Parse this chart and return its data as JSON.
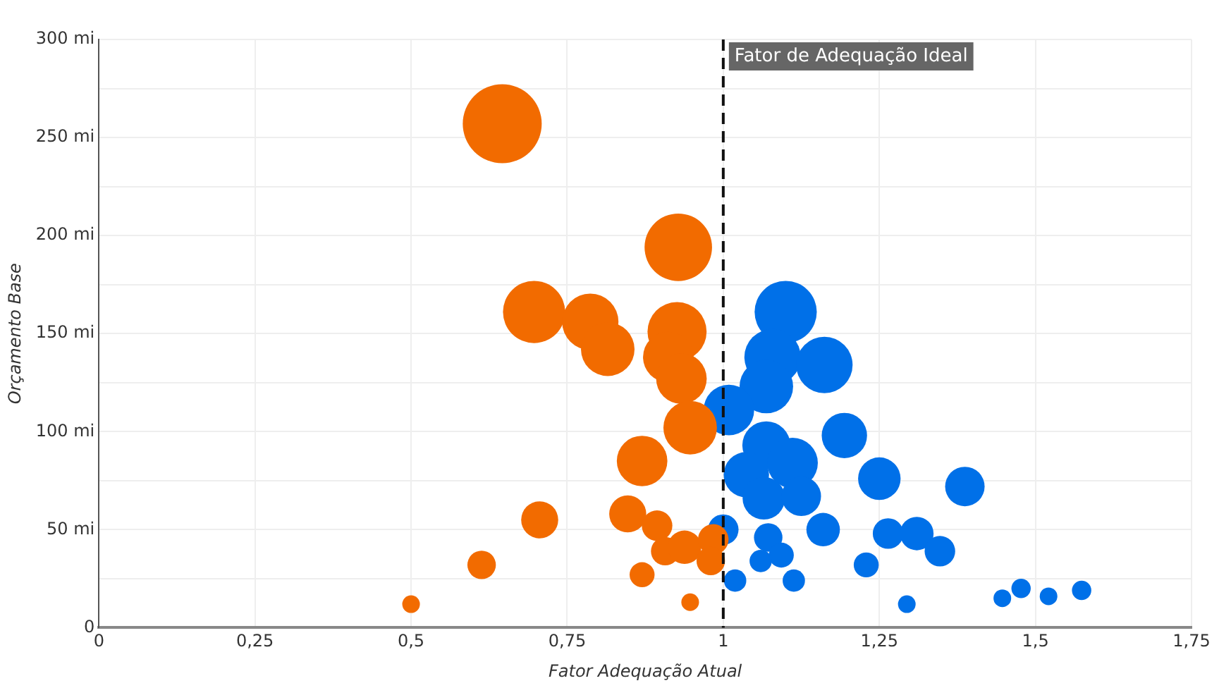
{
  "chart_data": {
    "type": "bubble",
    "xlabel": "Fator Adequação Atual",
    "ylabel": "Orçamento Base",
    "xlim": [
      0,
      1.75
    ],
    "xticks": [
      0,
      {
        "value": 0.25,
        "label": "0,25"
      },
      {
        "value": 0.5,
        "label": "0,5"
      },
      {
        "value": 0.75,
        "label": "0,75"
      },
      1,
      {
        "value": 1.25,
        "label": "1,25"
      },
      {
        "value": 1.5,
        "label": "1,5"
      },
      {
        "value": 1.75,
        "label": "1,75"
      }
    ],
    "ylim": [
      0,
      300
    ],
    "yticks": [
      0,
      {
        "value": 25,
        "label": null
      },
      {
        "value": 50,
        "label": "50 mi"
      },
      {
        "value": 75,
        "label": null
      },
      {
        "value": 100,
        "label": "100 mi"
      },
      {
        "value": 125,
        "label": null
      },
      {
        "value": 150,
        "label": "150 mi"
      },
      {
        "value": 175,
        "label": null
      },
      {
        "value": 200,
        "label": "200 mi"
      },
      {
        "value": 225,
        "label": null
      },
      {
        "value": 250,
        "label": "250 mi"
      },
      {
        "value": 275,
        "label": null
      },
      {
        "value": 300,
        "label": "300 mi"
      }
    ],
    "grid": true,
    "legend": false,
    "ref_lines": [
      {
        "axis": "x",
        "value": 1,
        "label": "Fator de Adequação Ideal",
        "color": "#111111",
        "line_style": "dashed"
      }
    ],
    "series": [
      {
        "color": "#f26b00",
        "x": [
          0.646,
          0.928,
          0.697,
          0.787,
          0.815,
          0.926,
          0.912,
          0.933,
          0.947,
          0.87,
          0.706,
          0.847,
          0.894,
          0.907,
          0.938,
          0.984,
          0.613,
          0.87,
          0.5,
          0.947,
          0.98
        ],
        "values": [
          257,
          194,
          161,
          156,
          142,
          151,
          138,
          127,
          102,
          85,
          55,
          58,
          52,
          39,
          41,
          45,
          32,
          27,
          12,
          13,
          34
        ],
        "sizes": [
          1,
          0.73,
          0.62,
          0.51,
          0.46,
          0.56,
          0.41,
          0.41,
          0.46,
          0.41,
          0.22,
          0.22,
          0.15,
          0.13,
          0.18,
          0.15,
          0.13,
          0.1,
          0.05,
          0.05,
          0.13
        ]
      },
      {
        "color": "#0070e8",
        "x": [
          1.1,
          1.079,
          1.162,
          1.069,
          1.009,
          1.194,
          1.069,
          1.037,
          1.111,
          1.065,
          1.125,
          1.25,
          1.387,
          1.16,
          1.264,
          1.31,
          1.347,
          1.0,
          1.072,
          1.093,
          1.06,
          1.019,
          1.113,
          1.229,
          1.294,
          1.447,
          1.477,
          1.521,
          1.574
        ],
        "values": [
          161,
          138,
          134,
          123,
          111,
          98,
          93,
          78,
          84,
          66,
          67,
          76,
          72,
          50,
          48,
          48,
          39,
          50,
          46,
          37,
          34,
          24,
          24,
          32,
          12,
          15,
          20,
          16,
          19
        ],
        "sizes": [
          0.62,
          0.51,
          0.51,
          0.46,
          0.41,
          0.33,
          0.37,
          0.33,
          0.41,
          0.29,
          0.25,
          0.29,
          0.25,
          0.18,
          0.15,
          0.18,
          0.15,
          0.15,
          0.13,
          0.1,
          0.08,
          0.08,
          0.08,
          0.1,
          0.05,
          0.05,
          0.06,
          0.05,
          0.06
        ]
      }
    ]
  }
}
